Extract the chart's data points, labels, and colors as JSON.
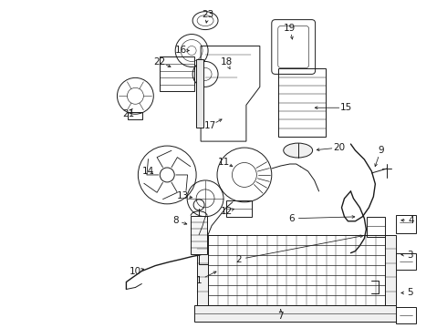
{
  "background_color": "#ffffff",
  "line_color": "#1a1a1a",
  "text_color": "#1a1a1a",
  "fig_width": 4.9,
  "fig_height": 3.6,
  "dpi": 100,
  "label_fontsize": 7.5,
  "lw": 0.7
}
